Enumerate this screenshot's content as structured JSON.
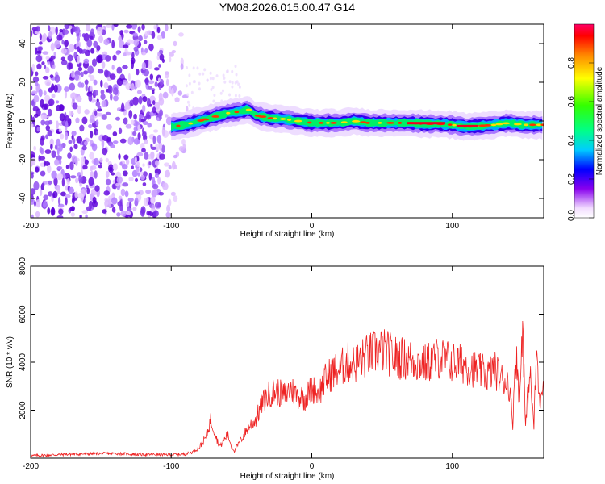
{
  "title": "YM08.2026.015.00.47.G14",
  "chart_data": [
    {
      "type": "heatmap",
      "title": "YM08.2026.015.00.47.G14",
      "xlabel": "Height of straight line (km)",
      "ylabel": "Frequency (Hz)",
      "xlim": [
        -200,
        165
      ],
      "ylim": [
        -50,
        50
      ],
      "xticks": [
        "-200",
        "-100",
        "0",
        "100"
      ],
      "yticks": [
        "-40",
        "-20",
        "0",
        "20",
        "40"
      ],
      "ridge_height_km": [
        -100,
        -90,
        -80,
        -70,
        -60,
        -50,
        -45,
        -40,
        -30,
        -20,
        -10,
        0,
        10,
        20,
        30,
        40,
        50,
        60,
        70,
        80,
        90,
        100,
        110,
        120,
        130,
        140,
        150,
        160,
        165
      ],
      "ridge_frequency_hz": [
        -3,
        -2,
        0,
        2,
        4,
        5,
        6,
        3,
        1.5,
        1,
        0,
        -1,
        -1,
        -1,
        0,
        -1,
        -1,
        -1,
        -1,
        -1.5,
        -1.5,
        -2,
        -3,
        -2.5,
        -2,
        -1,
        -2,
        -2,
        -2
      ],
      "colorbar": {
        "label": "Normalized spectral amplitude",
        "ticks": [
          "0.0",
          "0.2",
          "0.4",
          "0.6",
          "0.8"
        ],
        "range": [
          0,
          1
        ]
      },
      "colors": {
        "low": "#eeccff",
        "mid": "#6600dd",
        "peak": "#ff0044"
      }
    },
    {
      "type": "line",
      "xlabel": "Height of straight line (km)",
      "ylabel": "SNR (10 * v/v)",
      "xlim": [
        -200,
        165
      ],
      "ylim": [
        0,
        8000
      ],
      "xticks": [
        "-200",
        "-100",
        "0",
        "100"
      ],
      "yticks": [
        "2000",
        "4000",
        "6000",
        "8000"
      ],
      "series": [
        {
          "name": "SNR",
          "color": "#ee2222",
          "x": [
            -200,
            -180,
            -160,
            -140,
            -120,
            -100,
            -90,
            -85,
            -80,
            -75,
            -72,
            -70,
            -67,
            -65,
            -62,
            -60,
            -57,
            -55,
            -50,
            -45,
            -40,
            -35,
            -30,
            -25,
            -20,
            -15,
            -10,
            -5,
            0,
            5,
            10,
            15,
            20,
            25,
            30,
            40,
            50,
            60,
            70,
            80,
            90,
            100,
            110,
            120,
            125,
            130,
            135,
            140,
            143,
            145,
            148,
            150,
            152,
            155,
            158,
            160,
            162,
            165
          ],
          "y": [
            100,
            150,
            180,
            200,
            150,
            150,
            170,
            250,
            450,
            900,
            1600,
            1300,
            700,
            500,
            800,
            1000,
            500,
            300,
            800,
            1300,
            1600,
            2300,
            2700,
            2800,
            2600,
            2900,
            2600,
            2500,
            2900,
            2700,
            3300,
            3600,
            3700,
            4000,
            3900,
            4300,
            4500,
            4200,
            4100,
            3900,
            4200,
            4000,
            3900,
            3600,
            3500,
            3700,
            3300,
            3200,
            1500,
            4500,
            2400,
            6000,
            1200,
            3700,
            1300,
            4600,
            2200,
            3700
          ]
        }
      ]
    }
  ]
}
